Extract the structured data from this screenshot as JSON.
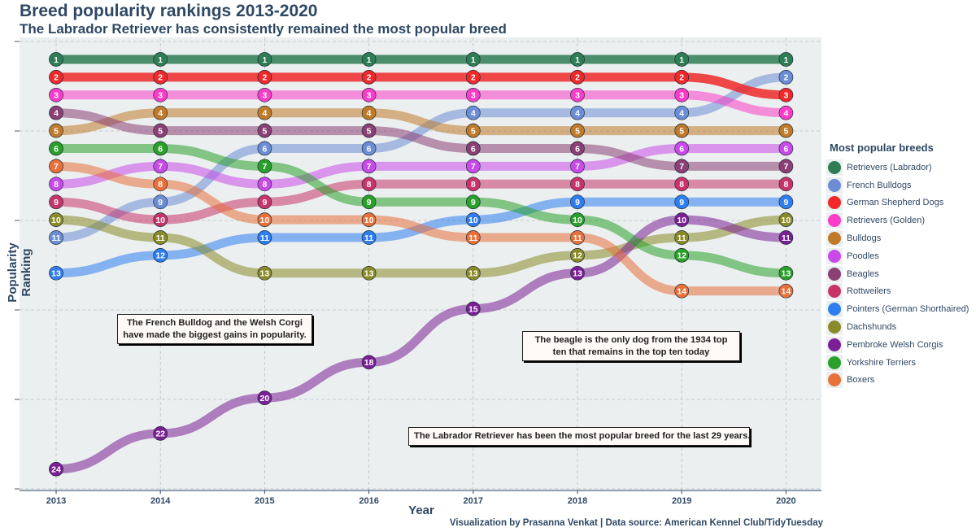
{
  "title": "Breed popularity rankings 2013-2020",
  "subtitle": "The Labrador Retriever has consistently remained the most popular breed",
  "caption": "Visualization by Prasanna Venkat | Data source: American Kennel Club/TidyTuesday",
  "annotations": [
    "The French Bulldog and the Welsh Corgi have made the biggest gains in popularity.",
    "The beagle is the only dog from the 1934 top ten that remains in the top ten today",
    "The Labrador Retriever has been the most popular breed for the last 29 years."
  ],
  "colors": {
    "panel_bg": "#ebeff0",
    "grid": "#b9c0c4",
    "text": "#2e4863"
  },
  "chart_data": {
    "type": "line",
    "chart_style": "bump",
    "title": "Breed popularity rankings 2013-2020",
    "subtitle": "The Labrador Retriever has consistently remained the most popular breed",
    "xlabel": "Year",
    "ylabel": "Popularity Ranking",
    "x": [
      2013,
      2014,
      2015,
      2016,
      2017,
      2018,
      2019,
      2020
    ],
    "y_reversed": true,
    "ylim": [
      1,
      24
    ],
    "legend_title": "Most popular breeds",
    "legend_position": "right",
    "grid": true,
    "series": [
      {
        "name": "Retrievers (Labrador)",
        "color": "#2e7d55",
        "values": [
          1,
          1,
          1,
          1,
          1,
          1,
          1,
          1
        ]
      },
      {
        "name": "French Bulldogs",
        "color": "#6b8dd6",
        "values": [
          11,
          9,
          6,
          6,
          4,
          4,
          4,
          2
        ]
      },
      {
        "name": "German Shepherd Dogs",
        "color": "#f0282a",
        "values": [
          2,
          2,
          2,
          2,
          2,
          2,
          2,
          3
        ]
      },
      {
        "name": "Retrievers (Golden)",
        "color": "#fa3cc8",
        "values": [
          3,
          3,
          3,
          3,
          3,
          3,
          3,
          4
        ]
      },
      {
        "name": "Bulldogs",
        "color": "#bf7a2a",
        "values": [
          5,
          4,
          4,
          4,
          5,
          5,
          5,
          5
        ]
      },
      {
        "name": "Poodles",
        "color": "#c84ae8",
        "values": [
          8,
          7,
          8,
          7,
          7,
          7,
          6,
          6
        ]
      },
      {
        "name": "Beagles",
        "color": "#8a3f75",
        "values": [
          4,
          5,
          5,
          5,
          6,
          6,
          7,
          7
        ]
      },
      {
        "name": "Rottweilers",
        "color": "#c8346a",
        "values": [
          9,
          10,
          9,
          8,
          8,
          8,
          8,
          8
        ]
      },
      {
        "name": "Pointers (German Shorthaired)",
        "color": "#2f7ef0",
        "values": [
          13,
          12,
          11,
          11,
          10,
          9,
          9,
          9
        ]
      },
      {
        "name": "Dachshunds",
        "color": "#8a8a28",
        "values": [
          10,
          11,
          13,
          13,
          13,
          12,
          11,
          10
        ]
      },
      {
        "name": "Pembroke Welsh Corgis",
        "color": "#7a1f96",
        "values": [
          24,
          22,
          20,
          18,
          15,
          13,
          10,
          11
        ]
      },
      {
        "name": "Yorkshire Terriers",
        "color": "#2aa02a",
        "values": [
          6,
          6,
          7,
          9,
          9,
          10,
          12,
          13
        ]
      },
      {
        "name": "Boxers",
        "color": "#e8703a",
        "values": [
          7,
          8,
          10,
          10,
          11,
          11,
          14,
          14
        ]
      }
    ]
  }
}
